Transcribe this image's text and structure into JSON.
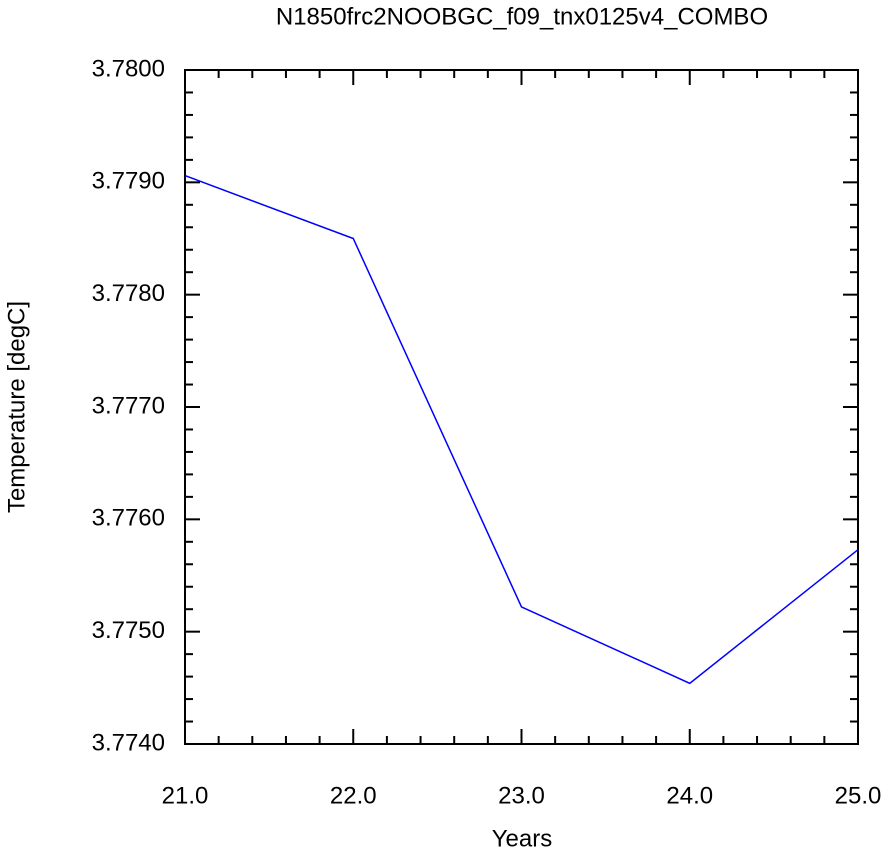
{
  "chart_data": {
    "type": "line",
    "title": "N1850frc2NOOBGC_f09_tnx0125v4_COMBO",
    "xlabel": "Years",
    "ylabel": "Temperature [degC]",
    "x": [
      21,
      22,
      23,
      24,
      25
    ],
    "series": [
      {
        "color": "#0000ff",
        "values": [
          3.77906,
          3.7785,
          3.77522,
          3.77454,
          3.77573
        ]
      }
    ],
    "xlim": [
      21,
      25
    ],
    "ylim": [
      3.774,
      3.78
    ],
    "xticks": [
      {
        "value": 21,
        "label": "21.0"
      },
      {
        "value": 22,
        "label": "22.0"
      },
      {
        "value": 23,
        "label": "23.0"
      },
      {
        "value": 24,
        "label": "24.0"
      },
      {
        "value": 25,
        "label": "25.0"
      }
    ],
    "yticks": [
      {
        "value": 3.774,
        "label": "3.7740"
      },
      {
        "value": 3.775,
        "label": "3.7750"
      },
      {
        "value": 3.776,
        "label": "3.7760"
      },
      {
        "value": 3.777,
        "label": "3.7770"
      },
      {
        "value": 3.778,
        "label": "3.7780"
      },
      {
        "value": 3.779,
        "label": "3.7790"
      },
      {
        "value": 3.78,
        "label": "3.7800"
      }
    ],
    "grid": false
  }
}
